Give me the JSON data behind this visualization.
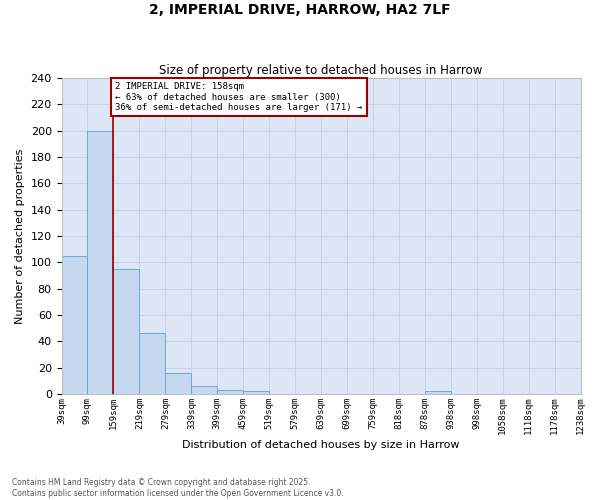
{
  "title": "2, IMPERIAL DRIVE, HARROW, HA2 7LF",
  "subtitle": "Size of property relative to detached houses in Harrow",
  "xlabel": "Distribution of detached houses by size in Harrow",
  "ylabel": "Number of detached properties",
  "bin_edges": [
    39,
    99,
    159,
    219,
    279,
    339,
    399,
    459,
    519,
    579,
    639,
    699,
    759,
    818,
    878,
    938,
    998,
    1058,
    1118,
    1178,
    1238
  ],
  "bar_heights": [
    105,
    200,
    95,
    46,
    16,
    6,
    3,
    2,
    0,
    0,
    0,
    0,
    0,
    0,
    2,
    0,
    0,
    0,
    0,
    0
  ],
  "bar_color": "#c5d8ee",
  "bar_edge_color": "#6aaad4",
  "grid_color": "#c8d4e4",
  "background_color": "#dce6f5",
  "vline_color": "#990000",
  "vline_x": 159,
  "annotation_text": "2 IMPERIAL DRIVE: 158sqm\n← 63% of detached houses are smaller (300)\n36% of semi-detached houses are larger (171) →",
  "annotation_box_color": "white",
  "annotation_border_color": "#990000",
  "ylim": [
    0,
    240
  ],
  "yticks": [
    0,
    20,
    40,
    60,
    80,
    100,
    120,
    140,
    160,
    180,
    200,
    220,
    240
  ],
  "footer_line1": "Contains HM Land Registry data © Crown copyright and database right 2025.",
  "footer_line2": "Contains public sector information licensed under the Open Government Licence v3.0."
}
